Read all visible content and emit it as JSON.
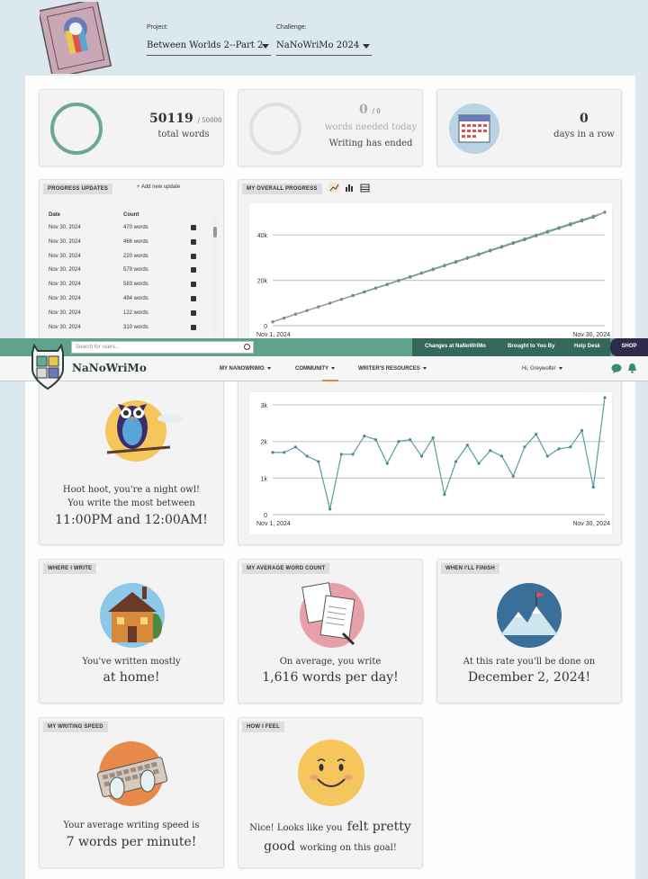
{
  "header": {
    "project_label": "Project:",
    "project_value": "Between Worlds 2--Part 2",
    "challenge_label": "Challenge:",
    "challenge_value": "NaNoWriMo 2024"
  },
  "stats": {
    "total_words": "50119",
    "goal": "/ 50000",
    "total_words_label": "total words",
    "words_needed": "0",
    "words_needed_small": "/ 0",
    "words_needed_label": "words needed today",
    "writing_ended": "Writing has ended",
    "streak": "0",
    "streak_label": "days in a row"
  },
  "progress_updates": {
    "tag": "PROGRESS UPDATES",
    "add_label": "+ Add new update",
    "col_date": "Date",
    "col_count": "Count",
    "rows": [
      {
        "date": "Nov 30, 2024",
        "count": "470 words"
      },
      {
        "date": "Nov 30, 2024",
        "count": "466 words"
      },
      {
        "date": "Nov 30, 2024",
        "count": "220 words"
      },
      {
        "date": "Nov 30, 2024",
        "count": "579 words"
      },
      {
        "date": "Nov 30, 2024",
        "count": "583 words"
      },
      {
        "date": "Nov 30, 2024",
        "count": "494 words"
      },
      {
        "date": "Nov 30, 2024",
        "count": "122 words"
      },
      {
        "date": "Nov 30, 2024",
        "count": "310 words"
      }
    ]
  },
  "overall_progress": {
    "tag": "MY OVERALL PROGRESS"
  },
  "chart_data": [
    {
      "type": "line",
      "x_start_label": "Nov 1, 2024",
      "x_end_label": "Nov 30, 2024",
      "yticks": [
        "0",
        "20k",
        "40k"
      ],
      "ylim": [
        0,
        50000
      ],
      "grid": true,
      "series": [
        {
          "values": [
            1700,
            3400,
            5100,
            6700,
            8300,
            9900,
            11600,
            13200,
            14800,
            16500,
            18100,
            19800,
            21400,
            23100,
            24700,
            26400,
            28000,
            29700,
            31300,
            33000,
            34600,
            36300,
            37900,
            39600,
            41200,
            42900,
            44500,
            46200,
            47800,
            50119
          ]
        },
        {
          "values": [
            1667,
            3333,
            5000,
            6667,
            8333,
            10000,
            11667,
            13333,
            15000,
            16667,
            18333,
            20000,
            21667,
            23333,
            25000,
            26667,
            28333,
            30000,
            31667,
            33333,
            35000,
            36667,
            38333,
            40000,
            41667,
            43333,
            45000,
            46667,
            48333,
            50000
          ]
        }
      ]
    },
    {
      "type": "line",
      "x_start_label": "Nov 1, 2024",
      "x_end_label": "Nov 30, 2024",
      "yticks": [
        "0",
        "1k",
        "2k",
        "3k"
      ],
      "ylim": [
        0,
        3100
      ],
      "grid": true,
      "series": [
        {
          "values": [
            1700,
            1700,
            1850,
            1600,
            1450,
            150,
            1650,
            1650,
            2150,
            2050,
            1400,
            2000,
            2050,
            1600,
            2100,
            550,
            1450,
            1900,
            1400,
            1750,
            1600,
            1050,
            1850,
            2200,
            1600,
            1800,
            1850,
            2300,
            750,
            3200
          ]
        }
      ]
    }
  ],
  "night_owl": {
    "line1": "Hoot hoot, you're a night owl!",
    "line2": "You write the most between",
    "time": "11:00PM and 12:00AM!"
  },
  "where_i_write": {
    "tag": "WHERE I WRITE",
    "line1": "You've written mostly",
    "line2": "at home!"
  },
  "average_word_count": {
    "tag": "MY AVERAGE WORD COUNT",
    "line1": "On average, you write",
    "line2": "1,616 words per day!"
  },
  "finish": {
    "tag": "WHEN I'LL FINISH",
    "line1": "At this rate you'll be done on",
    "line2": "December 2, 2024!"
  },
  "writing_speed": {
    "tag": "MY WRITING SPEED",
    "line1": "Your average writing speed is",
    "line2": "7 words per minute!"
  },
  "how_i_feel": {
    "tag": "HOW I FEEL",
    "line1a": "Nice! Looks like you",
    "line1b": "felt pretty",
    "line2a": "good",
    "line2b": "working on this goal!"
  },
  "nav": {
    "search_placeholder": "Search for users...",
    "links": [
      "Changes at NaNoWriMo",
      "Brought to You By",
      "Help Desk"
    ],
    "shop": "SHOP",
    "brand": "NaNoWriMo",
    "menu": [
      "MY NANOWRIMO",
      "COMMUNITY",
      "WRITER'S RESOURCES"
    ],
    "greeting": "Hi, Greywolfe!"
  },
  "colors": {
    "accent": "#6aa88f",
    "nav_dark": "#34685a",
    "chart_line": "#5a9aa0"
  }
}
